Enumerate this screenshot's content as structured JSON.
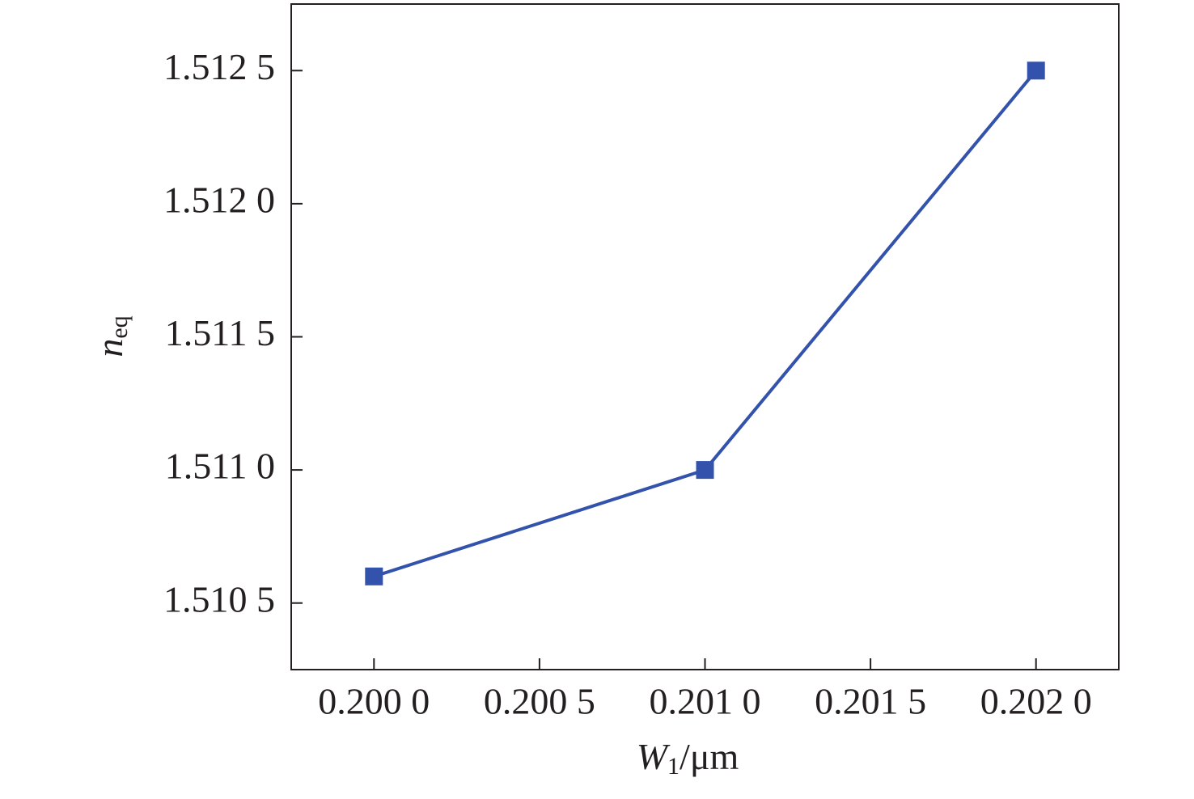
{
  "chart_data": {
    "type": "line",
    "x": [
      0.2,
      0.201,
      0.202
    ],
    "series": [
      {
        "color": "#3352ac",
        "values": [
          1.5106,
          1.511,
          1.5125
        ]
      }
    ],
    "xlim": [
      0.19975,
      0.20225
    ],
    "xticks": [
      {
        "value": 0.2,
        "label": "0.200 0"
      },
      {
        "value": 0.2005,
        "label": "0.200 5"
      },
      {
        "value": 0.201,
        "label": "0.201 0"
      },
      {
        "value": 0.2015,
        "label": "0.201 5"
      },
      {
        "value": 0.202,
        "label": "0.202 0"
      }
    ],
    "ylim": [
      1.51025,
      1.51275
    ],
    "yticks": [
      {
        "value": 1.5105,
        "label": "1.510 5"
      },
      {
        "value": 1.511,
        "label": "1.511 0"
      },
      {
        "value": 1.5115,
        "label": "1.511 5"
      },
      {
        "value": 1.512,
        "label": "1.512 0"
      },
      {
        "value": 1.5125,
        "label": "1.512 5"
      }
    ],
    "x_label": {
      "main": "W",
      "sub": "1",
      "unit": "/μm"
    },
    "y_label": {
      "main": "n",
      "sub": "eq"
    },
    "grid": false
  }
}
